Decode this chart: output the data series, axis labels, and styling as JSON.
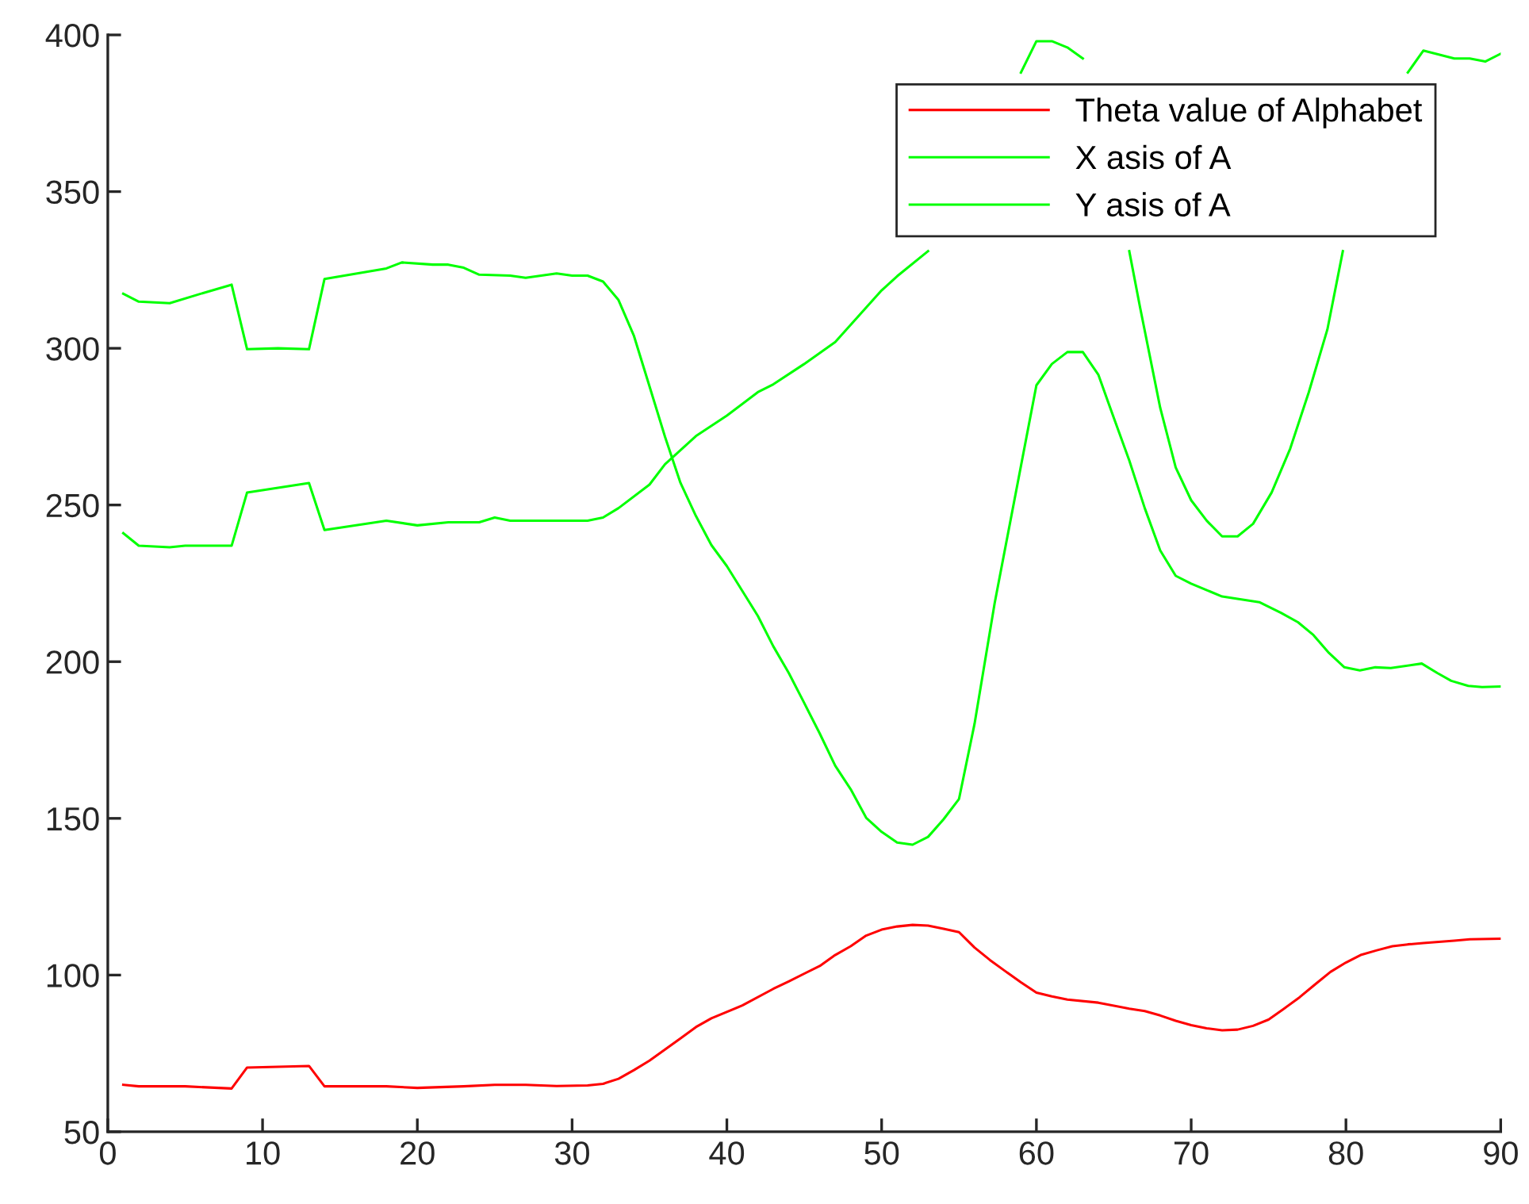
{
  "chart_data": {
    "type": "line",
    "xlim": [
      0,
      90
    ],
    "ylim": [
      50,
      400
    ],
    "xticks": [
      0,
      10,
      20,
      30,
      40,
      50,
      60,
      70,
      80,
      90
    ],
    "yticks": [
      50,
      100,
      150,
      200,
      250,
      300,
      350,
      400
    ],
    "grid": false,
    "legend": "top right",
    "marker": "none",
    "line_style": "solid",
    "series": [
      {
        "name": "Theta value of Alphabet",
        "color": "#ff0000",
        "x": [
          1,
          2,
          5,
          8,
          9,
          13,
          14,
          18,
          20,
          23,
          25,
          27,
          29,
          31,
          32,
          33,
          34,
          35,
          37,
          38,
          39,
          41,
          43,
          44,
          46,
          47,
          48,
          49,
          50,
          51,
          52,
          53,
          54,
          55,
          56,
          57,
          58,
          59,
          60,
          61,
          62,
          64,
          66,
          67,
          68,
          69,
          70,
          71,
          72,
          73,
          74,
          75,
          76,
          77,
          78,
          79,
          80,
          81,
          82,
          83,
          84,
          85,
          86,
          87,
          88,
          90
        ],
        "values": [
          65,
          64.5,
          64.5,
          63.8,
          70.5,
          71,
          64.5,
          64.5,
          64,
          64.5,
          65,
          65,
          64.6,
          64.8,
          65.3,
          66.9,
          69.7,
          72.7,
          79.8,
          83.4,
          86.2,
          90.3,
          95.6,
          98,
          102.9,
          106.4,
          109.2,
          112.6,
          114.5,
          115.5,
          116,
          115.8,
          114.8,
          113.7,
          108.8,
          104.8,
          101.2,
          97.7,
          94.4,
          93.2,
          92.2,
          91.2,
          89.3,
          88.5,
          87.1,
          85.4,
          84,
          83,
          82.4,
          82.6,
          83.8,
          85.8,
          89.3,
          92.9,
          97,
          101,
          104,
          106.5,
          107.9,
          109.2,
          109.8,
          110.2,
          110.6,
          111,
          111.4,
          111.6
        ]
      },
      {
        "name": "X asis of A",
        "color": "#00ff00",
        "x": [
          1,
          2,
          4,
          6,
          8,
          9,
          11,
          13,
          14,
          18,
          19,
          21,
          22,
          23,
          24,
          26,
          27,
          29,
          30,
          31,
          32,
          33,
          34,
          35,
          36,
          37,
          38,
          39,
          40,
          41.5,
          42,
          43,
          44,
          45,
          46,
          47,
          48,
          49,
          50,
          51,
          52,
          53,
          54,
          55,
          56,
          57.3,
          60,
          61,
          62,
          63,
          64,
          65,
          66,
          67,
          68,
          69,
          70,
          72,
          74.4,
          75.8,
          76.9,
          77.9,
          78.9,
          79.9,
          80.9,
          81.9,
          82.9,
          84.9,
          85.9,
          86.8,
          87.9,
          88.8,
          90
        ],
        "values": [
          317.4,
          314.9,
          314.4,
          317.4,
          320.3,
          299.7,
          300,
          299.7,
          322.1,
          325.5,
          327.4,
          326.7,
          326.7,
          325.7,
          323.5,
          323.2,
          322.5,
          323.9,
          323.2,
          323.2,
          321.3,
          315.4,
          303.9,
          287.9,
          271.8,
          257.1,
          246.5,
          237.2,
          230.5,
          218.6,
          214.6,
          204.9,
          196.4,
          186.8,
          177.1,
          166.8,
          159.3,
          150.2,
          145.7,
          142.3,
          141.6,
          144.1,
          149.7,
          156.2,
          180.1,
          218.6,
          288.2,
          295,
          298.8,
          298.8,
          291.6,
          277.8,
          264.2,
          249,
          235.5,
          227.4,
          224.9,
          220.8,
          219,
          215.6,
          212.6,
          208.5,
          202.8,
          198.2,
          197.2,
          198.2,
          198,
          199.4,
          196.4,
          193.9,
          192.3,
          191.9,
          192.1
        ]
      },
      {
        "name": "Y asis of A",
        "color": "#00ff00",
        "x": [
          1,
          2,
          4,
          5,
          8,
          9,
          13,
          14,
          18,
          20,
          22,
          24,
          25,
          26,
          31,
          32,
          33,
          35,
          36,
          38,
          40,
          42,
          43,
          45,
          47,
          50,
          51,
          53,
          56,
          59,
          60,
          61,
          62,
          63,
          65,
          66,
          66.7,
          68,
          69,
          70,
          71,
          72,
          73,
          74,
          75.2,
          76.4,
          77.6,
          78.8,
          79.8,
          82,
          84,
          85,
          87,
          88,
          89,
          90
        ],
        "values": [
          241,
          237,
          236.5,
          237,
          237,
          254,
          257,
          242,
          245,
          243.5,
          244.5,
          244.5,
          246,
          245,
          245,
          246,
          249,
          256.5,
          263,
          272,
          278.5,
          286,
          288.5,
          295,
          302,
          318.5,
          323,
          331,
          null,
          388,
          398,
          398,
          396,
          392.5,
          null,
          331,
          313,
          281,
          262,
          251.5,
          245,
          240,
          240,
          244,
          254,
          268,
          286,
          306,
          331,
          null,
          388,
          395,
          392.5,
          392.5,
          391.5,
          394
        ]
      }
    ]
  }
}
